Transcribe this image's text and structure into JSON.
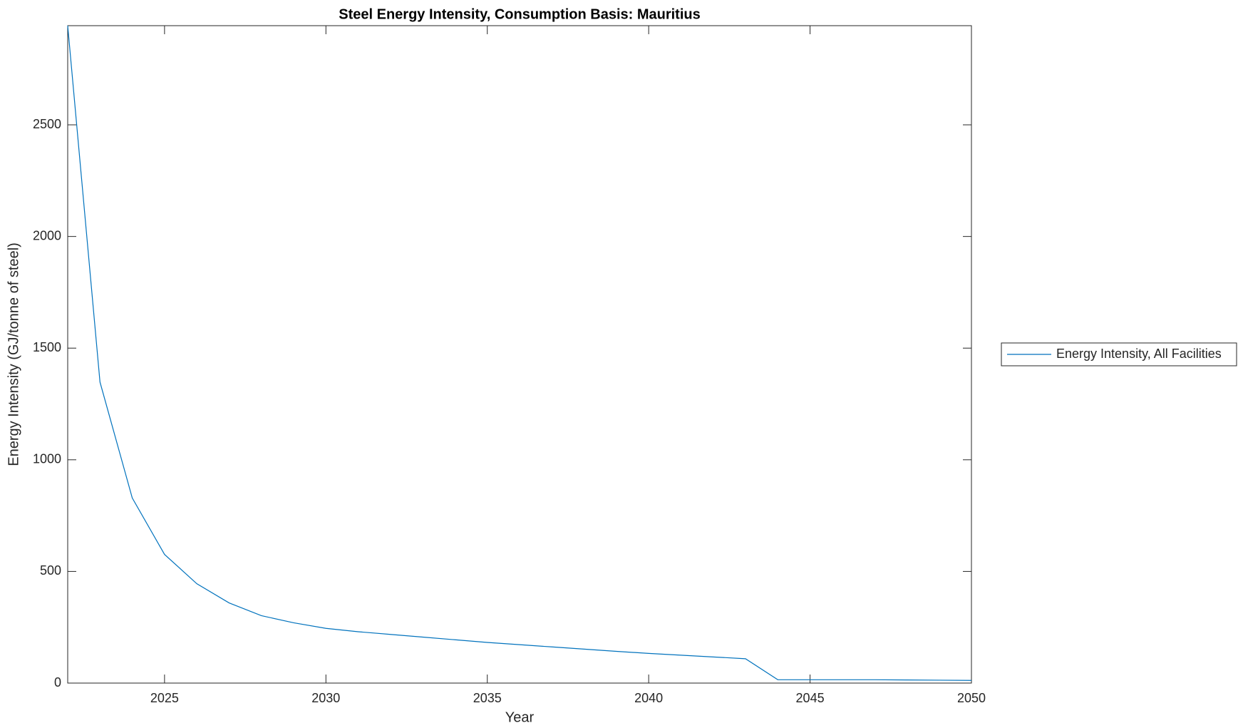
{
  "chart_data": {
    "type": "line",
    "title": "Steel Energy Intensity, Consumption Basis: Mauritius",
    "x_label": "Year",
    "y_label": "Energy Intensity (GJ/tonne of steel)",
    "x": [
      2022,
      2023,
      2024,
      2025,
      2026,
      2027,
      2028,
      2029,
      2030,
      2031,
      2032,
      2033,
      2034,
      2035,
      2036,
      2037,
      2038,
      2039,
      2040,
      2041,
      2042,
      2043,
      2044,
      2045,
      2046,
      2047,
      2048,
      2049,
      2050
    ],
    "series": [
      {
        "name": "Energy Intensity, All Facilities",
        "color": "#0072bd",
        "values": [
          2944,
          1348,
          829,
          576,
          445,
          359,
          302,
          270,
          245,
          230,
          218,
          206,
          194,
          182,
          172,
          162,
          152,
          142,
          133,
          125,
          117,
          109,
          15,
          15,
          15,
          15,
          14,
          13,
          12
        ]
      }
    ],
    "xlim": [
      2022,
      2050
    ],
    "xticks": [
      2025,
      2030,
      2035,
      2040,
      2045,
      2050
    ],
    "ylim": [
      0,
      2944
    ],
    "yticks": [
      0,
      500,
      1000,
      1500,
      2000,
      2500
    ],
    "legend": "east-outside",
    "grid": false
  }
}
